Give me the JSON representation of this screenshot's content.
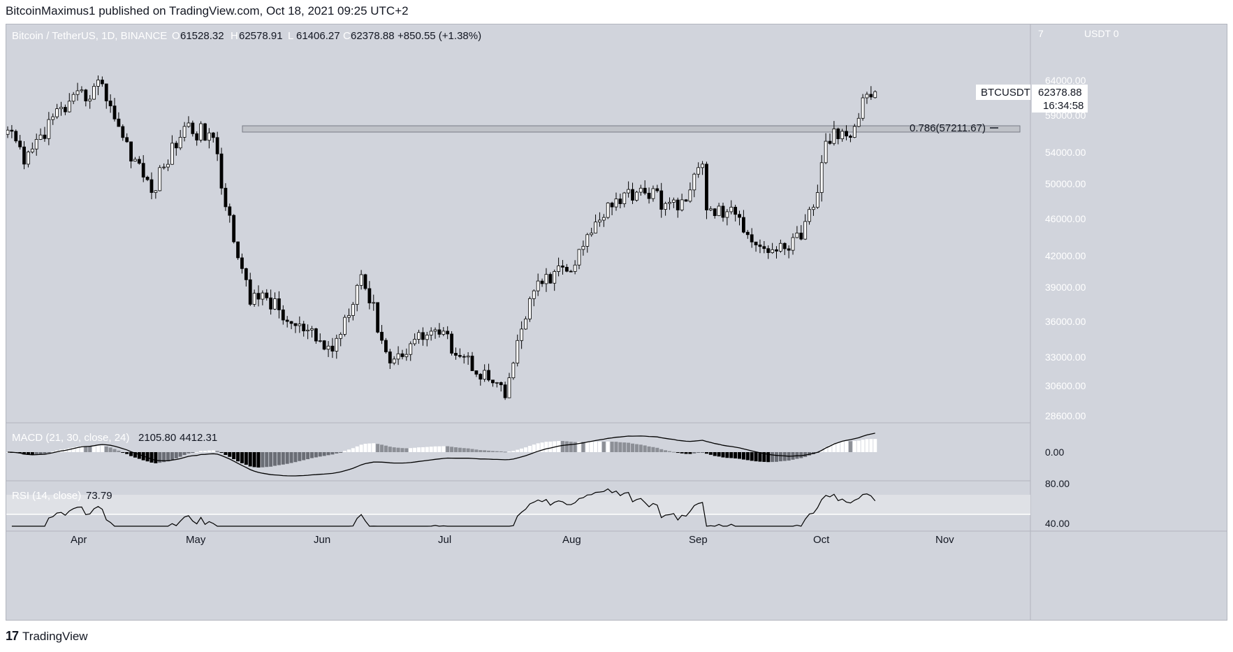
{
  "publish_line": "BitcoinMaximus1 published on TradingView.com, Oct 18, 2021 09:25 UTC+2",
  "footer": {
    "logo_mark": "17",
    "brand": "TradingView"
  },
  "symbol_header": {
    "name": "Bitcoin / TetherUS, 1D, BINANCE",
    "o_label": "O",
    "o": "61528.32",
    "h_label": "H",
    "h": "62578.91",
    "l_label": "L",
    "l": "61406.27",
    "c_label": "C",
    "c": "62378.88",
    "change": "+850.55 (+1.38%)"
  },
  "price_axis": {
    "currency_prefix": "7",
    "currency": "USDT 0",
    "ticks": [
      "64000.00",
      "59000.00",
      "54000.00",
      "50000.00",
      "46000.00",
      "42000.00",
      "39000.00",
      "36000.00",
      "33000.00",
      "30600.00",
      "28600.00"
    ],
    "tag_symbol": "BTCUSDT",
    "tag_price": "62378.88",
    "tag_countdown": "16:34:58"
  },
  "fib_label": "0.786(57211.67)",
  "macd": {
    "label": "MACD (21, 30, close, 24)",
    "v1": "2105.80",
    "v2": "4412.31",
    "zero_tick": "0.00"
  },
  "rsi": {
    "label": "RSI (14, close)",
    "value": "73.79",
    "tick_top": "80.00",
    "tick_bottom": "40.00"
  },
  "time_axis": [
    "Apr",
    "May",
    "Jun",
    "Jul",
    "Aug",
    "Sep",
    "Oct",
    "Nov"
  ],
  "colors": {
    "panel_bg": "#d1d4dc",
    "up_fill": "#ffffff",
    "down_fill": "#000000",
    "wick": "#000000",
    "fib_band": "#bfc2c8"
  },
  "chart_data": {
    "type": "candlestick",
    "symbol": "BTCUSDT",
    "interval": "1D",
    "fib_level": {
      "ratio": 0.786,
      "value": 57211.67
    },
    "ylim": [
      28600,
      66000
    ],
    "anchor_closes": [
      {
        "date": "2021-03-21",
        "close": 57000
      },
      {
        "date": "2021-03-25",
        "close": 52500
      },
      {
        "date": "2021-04-01",
        "close": 58800
      },
      {
        "date": "2021-04-13",
        "close": 63500
      },
      {
        "date": "2021-04-18",
        "close": 56000
      },
      {
        "date": "2021-04-25",
        "close": 49000
      },
      {
        "date": "2021-05-03",
        "close": 57500
      },
      {
        "date": "2021-05-10",
        "close": 56000
      },
      {
        "date": "2021-05-12",
        "close": 49500
      },
      {
        "date": "2021-05-19",
        "close": 37500
      },
      {
        "date": "2021-05-22",
        "close": 38500
      },
      {
        "date": "2021-05-28",
        "close": 36000
      },
      {
        "date": "2021-06-08",
        "close": 33500
      },
      {
        "date": "2021-06-15",
        "close": 40200
      },
      {
        "date": "2021-06-22",
        "close": 32500
      },
      {
        "date": "2021-06-28",
        "close": 34500
      },
      {
        "date": "2021-07-03",
        "close": 35300
      },
      {
        "date": "2021-07-20",
        "close": 29800
      },
      {
        "date": "2021-07-26",
        "close": 38000
      },
      {
        "date": "2021-08-01",
        "close": 40500
      },
      {
        "date": "2021-08-05",
        "close": 40500
      },
      {
        "date": "2021-08-14",
        "close": 47800
      },
      {
        "date": "2021-08-22",
        "close": 49500
      },
      {
        "date": "2021-08-31",
        "close": 47000
      },
      {
        "date": "2021-09-06",
        "close": 52500
      },
      {
        "date": "2021-09-07",
        "close": 47000
      },
      {
        "date": "2021-09-14",
        "close": 46500
      },
      {
        "date": "2021-09-20",
        "close": 43000
      },
      {
        "date": "2021-09-24",
        "close": 42500
      },
      {
        "date": "2021-09-30",
        "close": 43800
      },
      {
        "date": "2021-10-04",
        "close": 49000
      },
      {
        "date": "2021-10-06",
        "close": 55500
      },
      {
        "date": "2021-10-13",
        "close": 57500
      },
      {
        "date": "2021-10-15",
        "close": 61500
      },
      {
        "date": "2021-10-18",
        "close": 62378.88
      }
    ],
    "last_candle": {
      "date": "2021-10-18",
      "open": 61528.32,
      "high": 62578.91,
      "low": 61406.27,
      "close": 62378.88
    }
  }
}
